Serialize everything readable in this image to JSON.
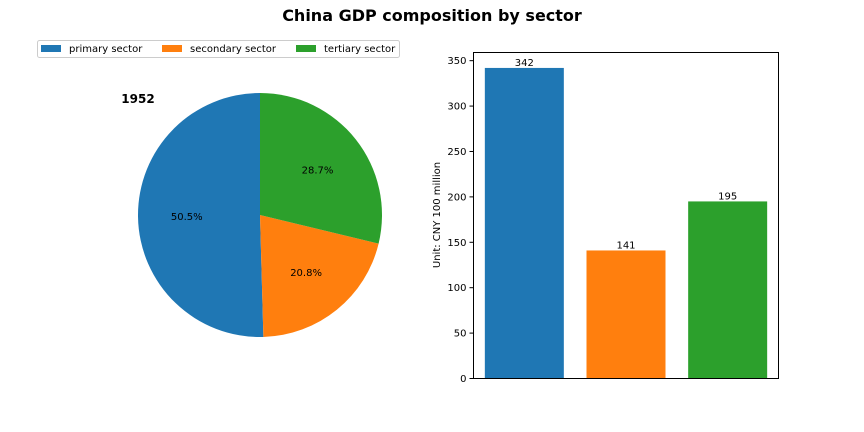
{
  "title": "China GDP composition by sector",
  "colors": {
    "primary": "#1f77b4",
    "secondary": "#ff7f0e",
    "tertiary": "#2ca02c"
  },
  "chart_data": [
    {
      "type": "pie",
      "title": "1952",
      "labels": [
        "primary sector",
        "secondary sector",
        "tertiary sector"
      ],
      "values": [
        342,
        141,
        195
      ],
      "percent_labels": [
        "50.5%",
        "20.8%",
        "28.7%"
      ],
      "start_angle_deg": 90,
      "direction": "counterclockwise",
      "legend": {
        "placement": "top-left",
        "entries": [
          "primary sector",
          "secondary sector",
          "tertiary sector"
        ]
      }
    },
    {
      "type": "bar",
      "categories": [
        "primary sector",
        "secondary sector",
        "tertiary sector"
      ],
      "values": [
        342,
        141,
        195
      ],
      "data_labels": [
        "342",
        "141",
        "195"
      ],
      "ylabel": "Unit: CNY 100 million",
      "ylim": [
        0,
        359
      ],
      "yticks": [
        0,
        50,
        100,
        150,
        200,
        250,
        300,
        350
      ],
      "show_xticks": false,
      "grid": false
    }
  ]
}
